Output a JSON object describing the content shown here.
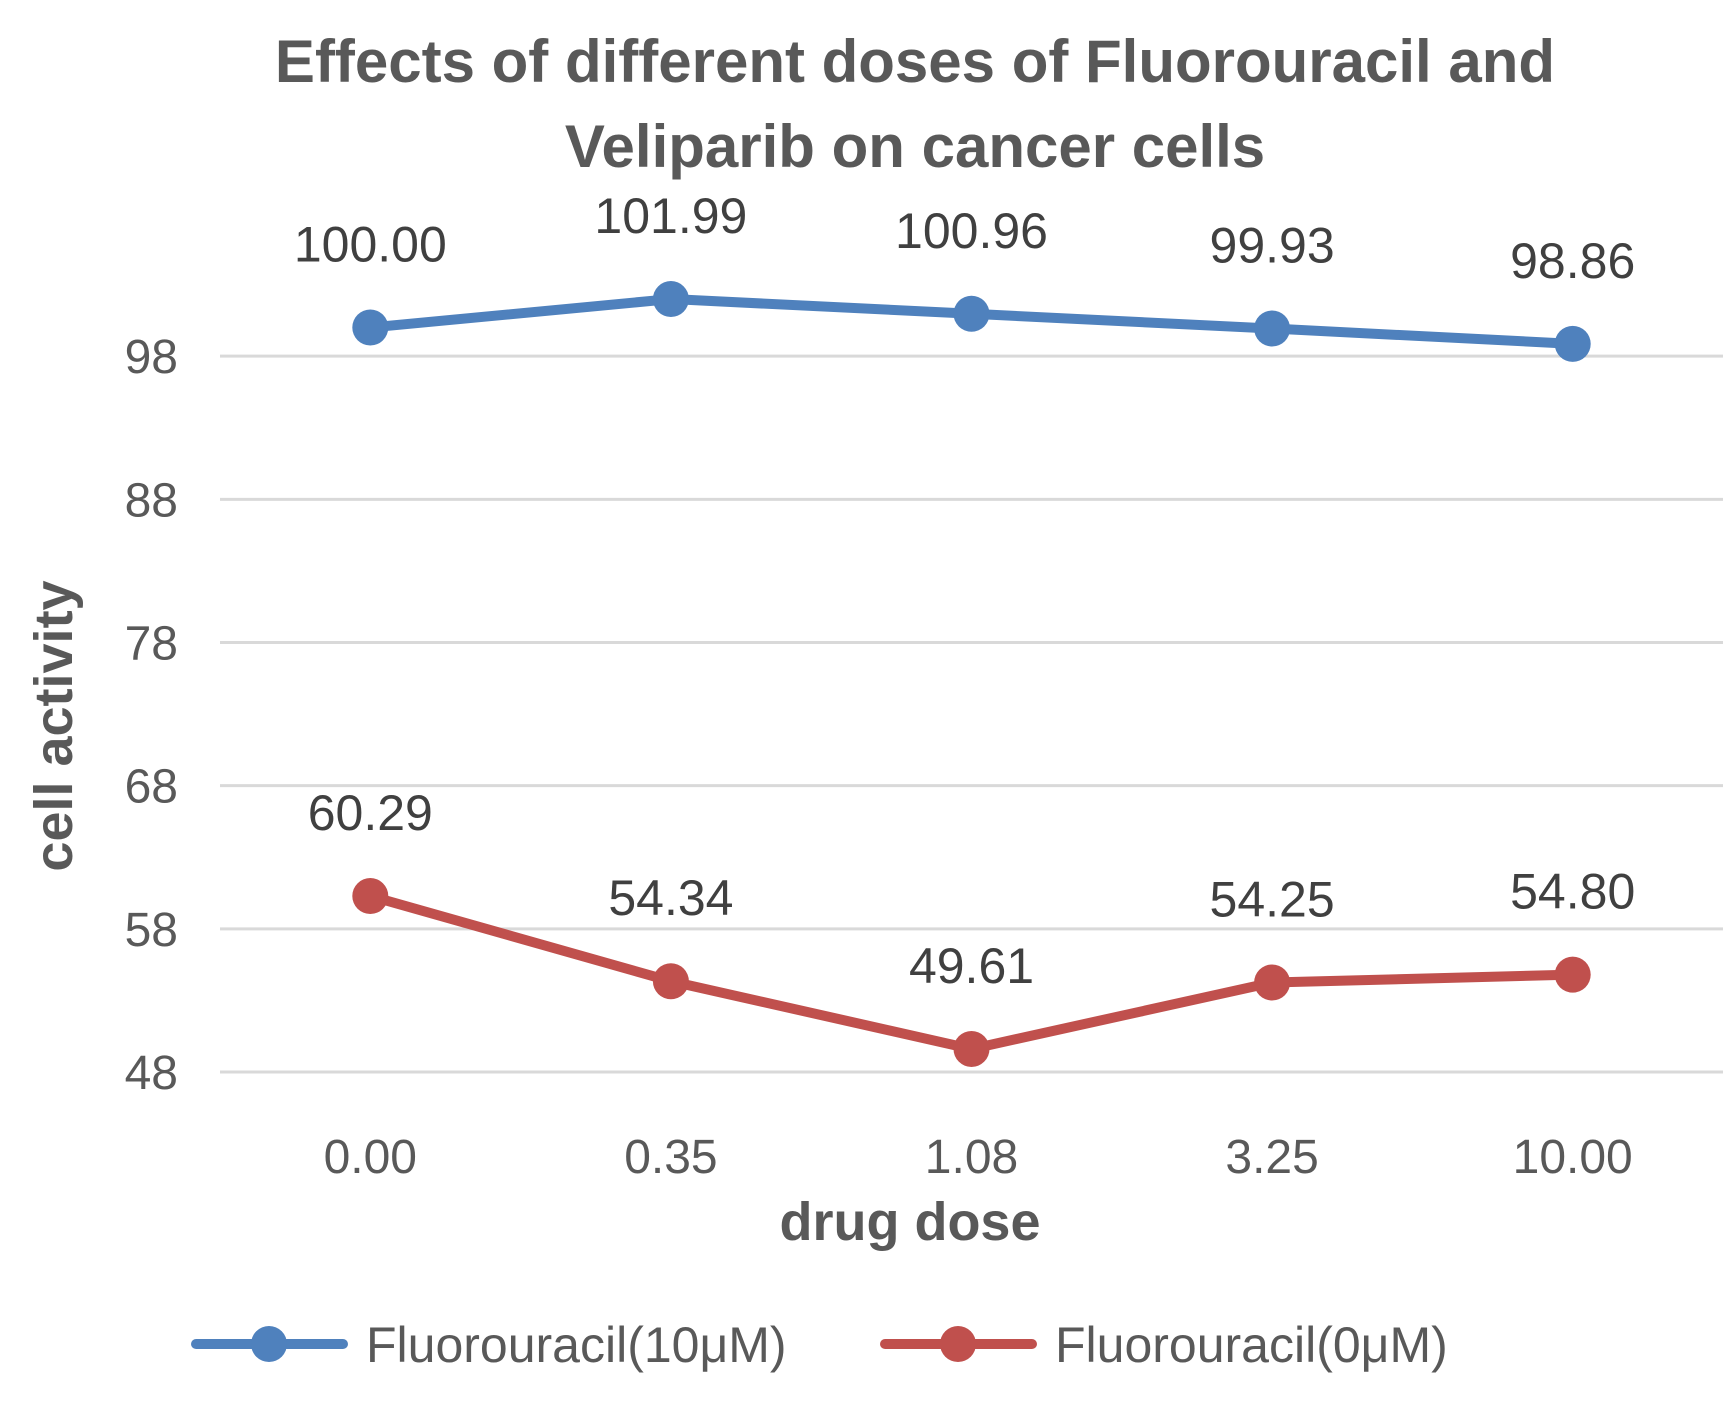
{
  "chart_data": {
    "type": "line",
    "title_lines": [
      "Effects of different doses of Fluorouracil and",
      "Veliparib on cancer cells"
    ],
    "xlabel": "drug dose",
    "ylabel": "cell activity",
    "categories": [
      "0.00",
      "0.35",
      "1.08",
      "3.25",
      "10.00"
    ],
    "yticks": [
      "48",
      "58",
      "68",
      "78",
      "88",
      "98"
    ],
    "ylim": [
      48,
      108
    ],
    "grid": true,
    "legend_position": "bottom",
    "series": [
      {
        "name": "Fluorouracil(10μM)",
        "color": "#4f81bd",
        "values": [
          100.0,
          101.99,
          100.96,
          99.93,
          98.86
        ],
        "labels": [
          "100.00",
          "101.99",
          "100.96",
          "99.93",
          "98.86"
        ]
      },
      {
        "name": "Fluorouracil(0μM)",
        "color": "#c0504d",
        "values": [
          60.29,
          54.34,
          49.61,
          54.25,
          54.8
        ],
        "labels": [
          "60.29",
          "54.34",
          "49.61",
          "54.25",
          "54.80"
        ]
      }
    ]
  }
}
